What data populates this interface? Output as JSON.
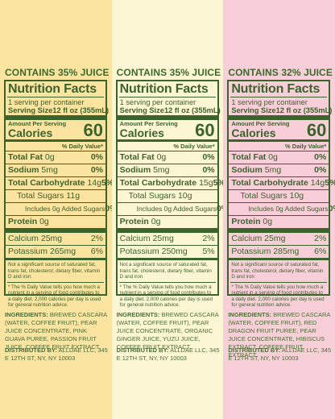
{
  "colors": {
    "green": "#3b632c",
    "col1_bg": "#fbe3a0",
    "col2_bg": "#fdf6d4",
    "col3_bg": "#f8cfd8"
  },
  "labels": {
    "nf_title": "Nutrition Facts",
    "serving_per": "1 serving per container",
    "serving_size_label": "Serving Size",
    "serving_size_value": "12 fl oz (355mL)",
    "amount_per_serving": "Amount Per Serving",
    "calories_label": "Calories",
    "dv_header": "% Daily Value*",
    "total_fat": "Total Fat",
    "sodium": "Sodium",
    "total_carb": "Total Carbohydrate",
    "total_sugars": "Total Sugars",
    "added_sugars_prefix": "Includes 0g Added Sugars",
    "protein": "Protein",
    "calcium": "Calcium",
    "potassium": "Potassium",
    "footnote_sig": "Not a significant source of saturated fat, trans fat, cholesterol, dietary fiber, vitamin D and iron",
    "footnote_dv": "* The % Daily Value tells you how much a nutrient in a serving of food contributes to a daily diet. 2,000 calories per day is used for general nutrition advice.",
    "ingredients_label": "INGREDIENTS:",
    "distributed_label": "DISTRIBUTED BY:"
  },
  "panels": [
    {
      "juice": "CONTAINS 35% JUICE",
      "calories": "60",
      "fat_value": "0g",
      "fat_dv": "0%",
      "sodium_value": "5mg",
      "sodium_dv": "0%",
      "carb_value": "14g",
      "carb_dv": "5%",
      "sugars_value": "11g",
      "added_dv": "0%",
      "protein_value": "0g",
      "calcium_value": "25mg",
      "calcium_dv": "2%",
      "potassium_value": "265mg",
      "potassium_dv": "6%",
      "ingredients": "BREWED CASCARA (WATER, COFFEE FRUIT), PEAR JUICE CONCENTRATE, PINK GUAVA PUREE, PASSION FRUIT JUICE, COFFEE FRUIT EXTRACT.",
      "distributor": "ALLDAE LLC, 345 E 12TH ST, NY, NY 10003"
    },
    {
      "juice": "CONTAINS 35% JUICE",
      "calories": "60",
      "fat_value": "0g",
      "fat_dv": "0%",
      "sodium_value": "5mg",
      "sodium_dv": "0%",
      "carb_value": "15g",
      "carb_dv": "5%",
      "sugars_value": "10g",
      "added_dv": "0%",
      "protein_value": "0g",
      "calcium_value": "25mg",
      "calcium_dv": "2%",
      "potassium_value": "250mg",
      "potassium_dv": "5%",
      "ingredients": "BREWED CASCARA (WATER, COFFEE FRUIT), PEAR JUICE CONCENTRATE, ORGANIC GINGER JUICE, YUZU JUICE, COFFEE FRUIT EXTRACT.",
      "distributor": "ALLDAE LLC, 345 E 12TH ST, NY, NY 10003"
    },
    {
      "juice": "CONTAINS 32% JUICE",
      "calories": "60",
      "fat_value": "0g",
      "fat_dv": "0%",
      "sodium_value": "5mg",
      "sodium_dv": "0%",
      "carb_value": "14g",
      "carb_dv": "5%",
      "sugars_value": "10g",
      "added_dv": "0%",
      "protein_value": "0g",
      "calcium_value": "25mg",
      "calcium_dv": "2%",
      "potassium_value": "285mg",
      "potassium_dv": "6%",
      "ingredients": "BREWED CASCARA (WATER, COFFEE FRUIT), RED DRAGON FRUIT PUREE, PEAR JUICE CONCENTRATE, HIBISCUS EXTRACT, COFFEE FRUIT EXTRACT.",
      "distributor": "ALLDAE LLC, 345 E 12TH ST, NY, NY 10003"
    }
  ]
}
